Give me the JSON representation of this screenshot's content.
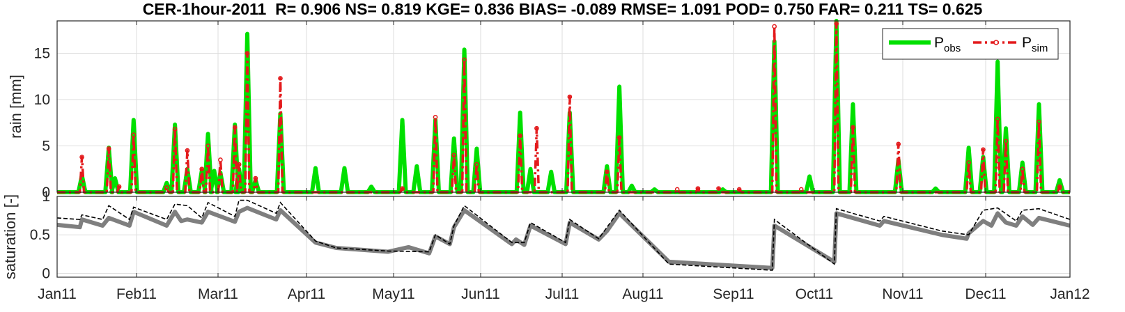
{
  "title": "CER-1hour-2011  R= 0.906 NS= 0.819 KGE= 0.836 BIAS= -0.089 RMSE= 1.091 POD= 0.750 FAR= 0.211 TS= 0.625",
  "colors": {
    "obs": "#00e000",
    "sim": "#e31a1c",
    "sat_obs": "#7f7f7f",
    "sat_sim": "#000000",
    "grid": "#dedede",
    "axis": "#262626"
  },
  "chart_data": [
    {
      "type": "line",
      "ylabel": "rain [mm]",
      "ylim": [
        0,
        18.5
      ],
      "yticks": [
        0,
        5,
        10,
        15
      ],
      "grid": true,
      "legend_position": "top-right",
      "x_unit": "day of 2011",
      "series": [
        {
          "name": "P",
          "name_sub": "obs",
          "style": "solid",
          "points": [
            [
              12,
              1.8
            ],
            [
              25,
              4.8
            ],
            [
              28,
              1.5
            ],
            [
              37,
              7.8
            ],
            [
              53,
              1.0
            ],
            [
              57,
              7.3
            ],
            [
              63,
              2.5
            ],
            [
              70,
              2.3
            ],
            [
              73,
              6.3
            ],
            [
              76,
              2.3
            ],
            [
              79,
              2.1
            ],
            [
              86,
              7.3
            ],
            [
              88,
              2.5
            ],
            [
              92,
              17.1
            ],
            [
              96,
              1.3
            ],
            [
              108,
              8.5
            ],
            [
              125,
              2.6
            ],
            [
              139,
              2.6
            ],
            [
              152,
              0.6
            ],
            [
              167,
              7.8
            ],
            [
              174,
              2.8
            ],
            [
              183,
              7.8
            ],
            [
              192,
              5.8
            ],
            [
              197,
              15.4
            ],
            [
              203,
              4.7
            ],
            [
              224,
              8.6
            ],
            [
              229,
              2.5
            ],
            [
              239,
              2.2
            ],
            [
              248,
              8.6
            ],
            [
              266,
              2.8
            ],
            [
              272,
              11.4
            ],
            [
              278,
              0.7
            ],
            [
              289,
              0.3
            ],
            [
              322,
              0.3
            ],
            [
              347,
              16.3
            ],
            [
              364,
              1.7
            ],
            [
              377,
              18.5
            ],
            [
              385,
              9.5
            ],
            [
              407,
              3.5
            ],
            [
              425,
              0.4
            ],
            [
              441,
              4.8
            ],
            [
              448,
              3.8
            ],
            [
              455,
              14.1
            ],
            [
              459,
              6.9
            ],
            [
              467,
              3.2
            ],
            [
              475,
              9.5
            ],
            [
              485,
              1.3
            ]
          ]
        },
        {
          "name": "P",
          "name_sub": "sim",
          "style": "dash-dot",
          "points": [
            [
              12,
              3.8
            ],
            [
              25,
              4.7
            ],
            [
              30,
              0.6
            ],
            [
              37,
              6.2
            ],
            [
              53,
              0.5
            ],
            [
              57,
              6.8
            ],
            [
              63,
              4.5
            ],
            [
              70,
              2.5
            ],
            [
              73,
              5.0
            ],
            [
              79,
              3.5
            ],
            [
              86,
              7.0
            ],
            [
              88,
              3.0
            ],
            [
              92,
              15.0
            ],
            [
              96,
              1.5
            ],
            [
              108,
              12.3
            ],
            [
              167,
              0.4
            ],
            [
              183,
              8.1
            ],
            [
              192,
              4.0
            ],
            [
              197,
              14.3
            ],
            [
              203,
              3.0
            ],
            [
              224,
              6.1
            ],
            [
              232,
              6.9
            ],
            [
              248,
              10.3
            ],
            [
              266,
              2.2
            ],
            [
              272,
              5.9
            ],
            [
              300,
              0.3
            ],
            [
              310,
              0.4
            ],
            [
              320,
              0.4
            ],
            [
              330,
              0.3
            ],
            [
              347,
              17.9
            ],
            [
              360,
              0.3
            ],
            [
              377,
              18.2
            ],
            [
              385,
              7.0
            ],
            [
              407,
              5.2
            ],
            [
              441,
              3.2
            ],
            [
              448,
              4.6
            ],
            [
              455,
              7.9
            ],
            [
              459,
              5.5
            ],
            [
              467,
              2.5
            ],
            [
              475,
              7.6
            ],
            [
              485,
              0.6
            ]
          ]
        }
      ]
    },
    {
      "type": "line",
      "ylabel": "saturation [-]",
      "ylim": [
        -0.05,
        1.0
      ],
      "yticks": [
        0,
        0.5,
        1
      ],
      "grid": true,
      "x_unit": "day of 2011",
      "xticks": [
        "Jan11",
        "Feb11",
        "Mar11",
        "Apr11",
        "May11",
        "Jun11",
        "Jul11",
        "Aug11",
        "Sep11",
        "Oct11",
        "Nov11",
        "Dec11",
        "Jan12"
      ],
      "series": [
        {
          "name": "obs",
          "style": "solid",
          "points": [
            [
              0,
              0.63
            ],
            [
              11,
              0.6
            ],
            [
              12,
              0.7
            ],
            [
              22,
              0.62
            ],
            [
              25,
              0.72
            ],
            [
              35,
              0.62
            ],
            [
              37,
              0.8
            ],
            [
              53,
              0.62
            ],
            [
              57,
              0.8
            ],
            [
              60,
              0.68
            ],
            [
              63,
              0.7
            ],
            [
              70,
              0.66
            ],
            [
              73,
              0.8
            ],
            [
              86,
              0.67
            ],
            [
              88,
              0.8
            ],
            [
              92,
              0.85
            ],
            [
              106,
              0.7
            ],
            [
              108,
              0.82
            ],
            [
              125,
              0.4
            ],
            [
              135,
              0.33
            ],
            [
              160,
              0.28
            ],
            [
              170,
              0.34
            ],
            [
              180,
              0.26
            ],
            [
              183,
              0.48
            ],
            [
              190,
              0.38
            ],
            [
              192,
              0.6
            ],
            [
              197,
              0.82
            ],
            [
              220,
              0.38
            ],
            [
              222,
              0.44
            ],
            [
              226,
              0.37
            ],
            [
              229,
              0.62
            ],
            [
              246,
              0.38
            ],
            [
              248,
              0.66
            ],
            [
              262,
              0.44
            ],
            [
              266,
              0.55
            ],
            [
              272,
              0.78
            ],
            [
              296,
              0.15
            ],
            [
              346,
              0.07
            ],
            [
              347,
              0.62
            ],
            [
              376,
              0.15
            ],
            [
              377,
              0.78
            ],
            [
              398,
              0.62
            ],
            [
              400,
              0.68
            ],
            [
              428,
              0.5
            ],
            [
              440,
              0.45
            ],
            [
              441,
              0.52
            ],
            [
              448,
              0.68
            ],
            [
              452,
              0.62
            ],
            [
              455,
              0.78
            ],
            [
              459,
              0.66
            ],
            [
              464,
              0.62
            ],
            [
              467,
              0.74
            ],
            [
              472,
              0.63
            ],
            [
              475,
              0.72
            ],
            [
              490,
              0.62
            ]
          ]
        },
        {
          "name": "sim",
          "style": "dashed",
          "points": [
            [
              0,
              0.72
            ],
            [
              11,
              0.7
            ],
            [
              12,
              0.76
            ],
            [
              22,
              0.7
            ],
            [
              25,
              0.88
            ],
            [
              35,
              0.7
            ],
            [
              37,
              0.86
            ],
            [
              53,
              0.7
            ],
            [
              57,
              0.9
            ],
            [
              63,
              0.88
            ],
            [
              70,
              0.72
            ],
            [
              73,
              0.92
            ],
            [
              86,
              0.74
            ],
            [
              88,
              0.95
            ],
            [
              92,
              0.95
            ],
            [
              106,
              0.78
            ],
            [
              108,
              0.92
            ],
            [
              125,
              0.42
            ],
            [
              135,
              0.33
            ],
            [
              160,
              0.29
            ],
            [
              180,
              0.28
            ],
            [
              183,
              0.5
            ],
            [
              190,
              0.38
            ],
            [
              192,
              0.62
            ],
            [
              197,
              0.88
            ],
            [
              220,
              0.4
            ],
            [
              226,
              0.4
            ],
            [
              229,
              0.66
            ],
            [
              246,
              0.4
            ],
            [
              248,
              0.7
            ],
            [
              262,
              0.45
            ],
            [
              272,
              0.82
            ],
            [
              296,
              0.12
            ],
            [
              346,
              0.04
            ],
            [
              347,
              0.7
            ],
            [
              376,
              0.12
            ],
            [
              377,
              0.84
            ],
            [
              398,
              0.68
            ],
            [
              400,
              0.74
            ],
            [
              428,
              0.55
            ],
            [
              441,
              0.5
            ],
            [
              448,
              0.82
            ],
            [
              455,
              0.85
            ],
            [
              464,
              0.68
            ],
            [
              467,
              0.82
            ],
            [
              475,
              0.84
            ],
            [
              490,
              0.7
            ]
          ]
        }
      ]
    }
  ],
  "legend": {
    "obs_label": "P",
    "obs_sub": "obs",
    "sim_label": "P",
    "sim_sub": "sim"
  }
}
